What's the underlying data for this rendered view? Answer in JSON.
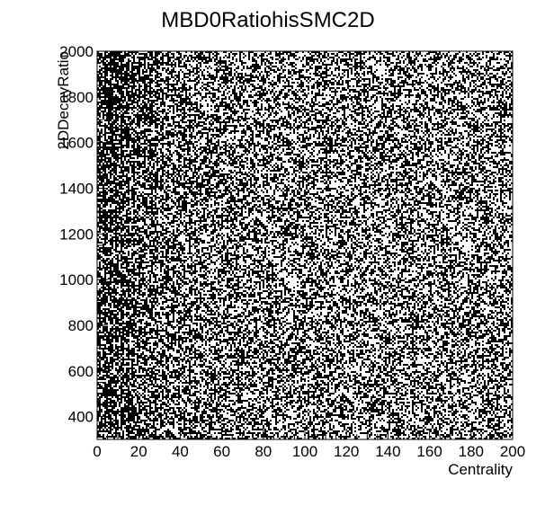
{
  "chart_data": {
    "type": "heatmap",
    "title": "MBD0RatiohisSMC2D",
    "xlabel": "Centrality",
    "ylabel": "2DDecayRatio",
    "xlim": [
      0,
      200
    ],
    "ylim": [
      300,
      2000
    ],
    "x_ticks": [
      0,
      20,
      40,
      60,
      80,
      100,
      120,
      140,
      160,
      180,
      200
    ],
    "y_ticks": [
      400,
      600,
      800,
      1000,
      1200,
      1400,
      1600,
      1800,
      2000
    ],
    "grid": false,
    "legend": "none",
    "colors": {
      "marker": "#000000",
      "background": "#ffffff",
      "frame": "#000000"
    },
    "density_profile": {
      "description_units": "fraction of cells filled, by centrality (x) value",
      "x": [
        0,
        5,
        10,
        15,
        20,
        30,
        40,
        60,
        100,
        150,
        200
      ],
      "fill_fraction": [
        0.62,
        0.72,
        0.7,
        0.64,
        0.58,
        0.55,
        0.52,
        0.48,
        0.46,
        0.45,
        0.45
      ]
    }
  }
}
